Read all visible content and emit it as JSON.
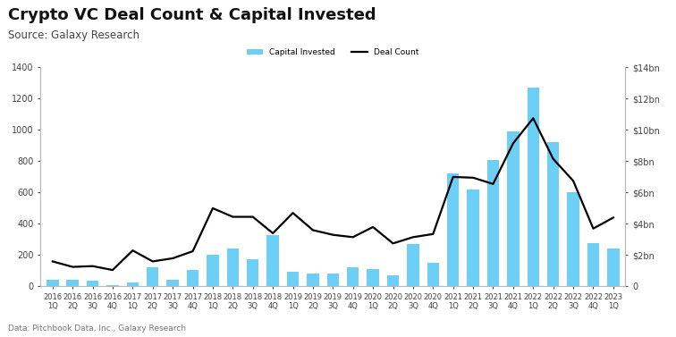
{
  "chart_data": {
    "type": "bar",
    "title": "Crypto VC Deal Count & Capital Invested",
    "subtitle": "Source: Galaxy Research",
    "footer": "Data: Pitchbook Data, Inc., Galaxy Research",
    "categories": [
      "2016\n1Q",
      "2016\n2Q",
      "2016\n3Q",
      "2016\n4Q",
      "2017\n1Q",
      "2017\n2Q",
      "2017\n3Q",
      "2017\n4Q",
      "2018\n1Q",
      "2018\n2Q",
      "2018\n3Q",
      "2018\n4Q",
      "2019\n1Q",
      "2019\n2Q",
      "2019\n3Q",
      "2019\n4Q",
      "2020\n1Q",
      "2020\n2Q",
      "2020\n3Q",
      "2020\n4Q",
      "2021\n1Q",
      "2021\n2Q",
      "2021\n3Q",
      "2021\n4Q",
      "2022\n1Q",
      "2022\n2Q",
      "2022\n3Q",
      "2022\n4Q",
      "2023\n1Q"
    ],
    "series": [
      {
        "name": "Capital Invested",
        "type": "bar",
        "axis": "y2",
        "color": "#6dcff6",
        "values": [
          0.4,
          0.4,
          0.35,
          0.1,
          0.25,
          1.2,
          0.4,
          1.05,
          2.05,
          2.4,
          1.75,
          3.3,
          0.95,
          0.8,
          0.85,
          1.2,
          1.1,
          0.7,
          2.7,
          1.5,
          7.2,
          6.2,
          8.1,
          9.9,
          12.7,
          9.25,
          6.0,
          2.75,
          2.45
        ]
      },
      {
        "name": "Deal Count",
        "type": "line",
        "color": "#000000",
        "values": [
          160,
          125,
          130,
          105,
          230,
          160,
          180,
          225,
          500,
          445,
          445,
          340,
          470,
          360,
          330,
          315,
          380,
          275,
          315,
          335,
          700,
          695,
          655,
          915,
          1075,
          815,
          675,
          370,
          440
        ]
      }
    ],
    "ylim": [
      0,
      1400
    ],
    "yticks": [
      0,
      200,
      400,
      600,
      800,
      1000,
      1200,
      1400
    ],
    "y2lim": [
      0,
      14
    ],
    "y2ticks": [
      0,
      {
        "value": 2,
        "label": "$2bn"
      },
      {
        "value": 4,
        "label": "$4bn"
      },
      {
        "value": 6,
        "label": "$6bn"
      },
      {
        "value": 8,
        "label": "$8bn"
      },
      {
        "value": 10,
        "label": "$10bn"
      },
      {
        "value": 12,
        "label": "$12bn"
      },
      {
        "value": 14,
        "label": "$14bn"
      }
    ],
    "legend": "upper center",
    "grid": false
  }
}
